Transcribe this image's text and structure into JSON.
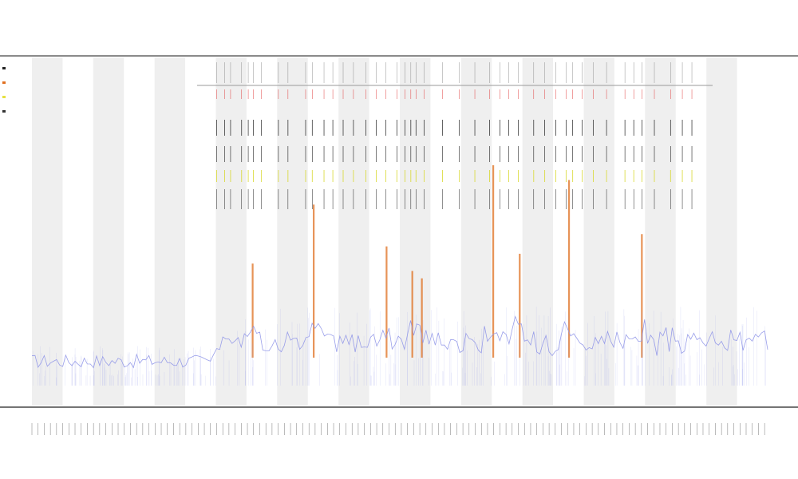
{
  "chart_data": {
    "type": "line",
    "title": "",
    "subtitle_lines": [
      "",
      ""
    ],
    "xlabel": "",
    "ylabel": "",
    "grid": false,
    "legend": {
      "placement": "top-left",
      "entries": [
        {
          "color": "#222222"
        },
        {
          "color": "#e07020"
        },
        {
          "color": "#e6e040"
        },
        {
          "color": "#333333"
        }
      ]
    },
    "colors": {
      "signal": "#8f95e8",
      "band": "#efefef",
      "highlight": "#e07020",
      "marker_red": "#e04040",
      "marker_black": "#222222",
      "marker_yellow": "#d8d830"
    },
    "x_count": 240,
    "band_pattern": "alternating",
    "band_count": 24,
    "event_positions": [
      0.251,
      0.262,
      0.27,
      0.285,
      0.294,
      0.301,
      0.312,
      0.335,
      0.348,
      0.372,
      0.381,
      0.397,
      0.409,
      0.423,
      0.437,
      0.454,
      0.468,
      0.481,
      0.496,
      0.507,
      0.515,
      0.522,
      0.533,
      0.558,
      0.581,
      0.602,
      0.622,
      0.636,
      0.648,
      0.661,
      0.682,
      0.697,
      0.712,
      0.726,
      0.735,
      0.748,
      0.763,
      0.781,
      0.806,
      0.818,
      0.829,
      0.846,
      0.868,
      0.884,
      0.897
    ],
    "peaks": [
      {
        "pos": 0.383,
        "height": 0.72
      },
      {
        "pos": 0.482,
        "height": 0.55
      },
      {
        "pos": 0.517,
        "height": 0.45
      },
      {
        "pos": 0.53,
        "height": 0.42
      },
      {
        "pos": 0.627,
        "height": 0.88
      },
      {
        "pos": 0.73,
        "height": 0.82
      },
      {
        "pos": 0.829,
        "height": 0.6
      },
      {
        "pos": 0.3,
        "height": 0.48
      },
      {
        "pos": 0.663,
        "height": 0.52
      }
    ]
  }
}
